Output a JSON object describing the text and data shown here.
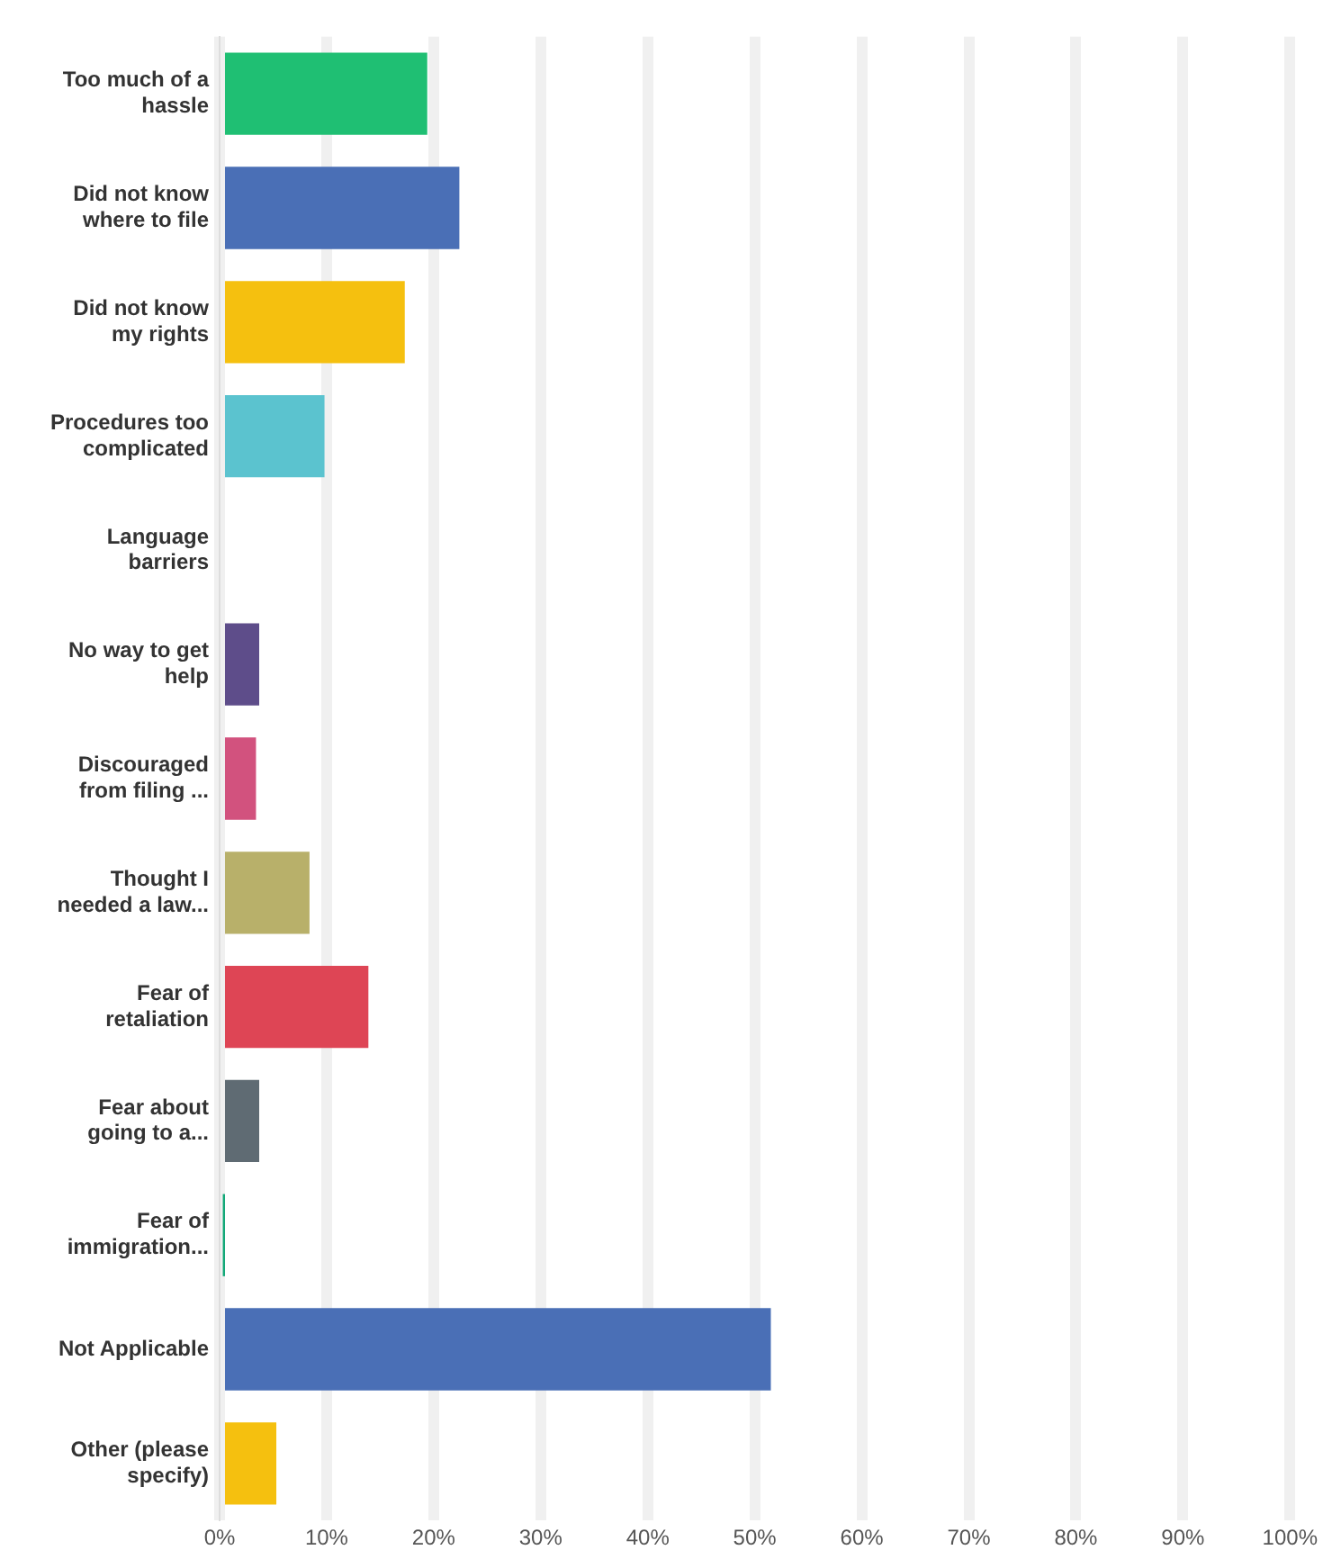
{
  "chart_data": {
    "type": "bar",
    "orientation": "horizontal",
    "categories": [
      "Too much of a hassle",
      "Did not know where to file",
      "Did not know my rights",
      "Procedures too complicated",
      "Language barriers",
      "No way to get help",
      "Discouraged from filing ...",
      "Thought I needed a law...",
      "Fear of retaliation",
      "Fear about going to a...",
      "Fear of immigration...",
      "Not Applicable",
      "Other (please specify)"
    ],
    "values": [
      19.4,
      22.4,
      17.3,
      9.8,
      0,
      3.7,
      3.4,
      8.4,
      13.9,
      3.7,
      0.3,
      51.5,
      5.3
    ],
    "colors": [
      "#1fbf73",
      "#4a6fb6",
      "#f5c00f",
      "#5bc3cf",
      "#7b4fa0",
      "#5e4d8a",
      "#d2527e",
      "#b8b06a",
      "#de4555",
      "#5f6b73",
      "#12a878",
      "#4a6fb6",
      "#f5c00f"
    ],
    "xlim": [
      0,
      100
    ],
    "xticks": [
      {
        "value": 0,
        "label": "0%"
      },
      {
        "value": 10,
        "label": "10%"
      },
      {
        "value": 20,
        "label": "20%"
      },
      {
        "value": 30,
        "label": "30%"
      },
      {
        "value": 40,
        "label": "40%"
      },
      {
        "value": 50,
        "label": "50%"
      },
      {
        "value": 60,
        "label": "60%"
      },
      {
        "value": 70,
        "label": "70%"
      },
      {
        "value": 80,
        "label": "80%"
      },
      {
        "value": 90,
        "label": "90%"
      },
      {
        "value": 100,
        "label": "100%"
      }
    ],
    "grid": "x",
    "legend": false
  }
}
